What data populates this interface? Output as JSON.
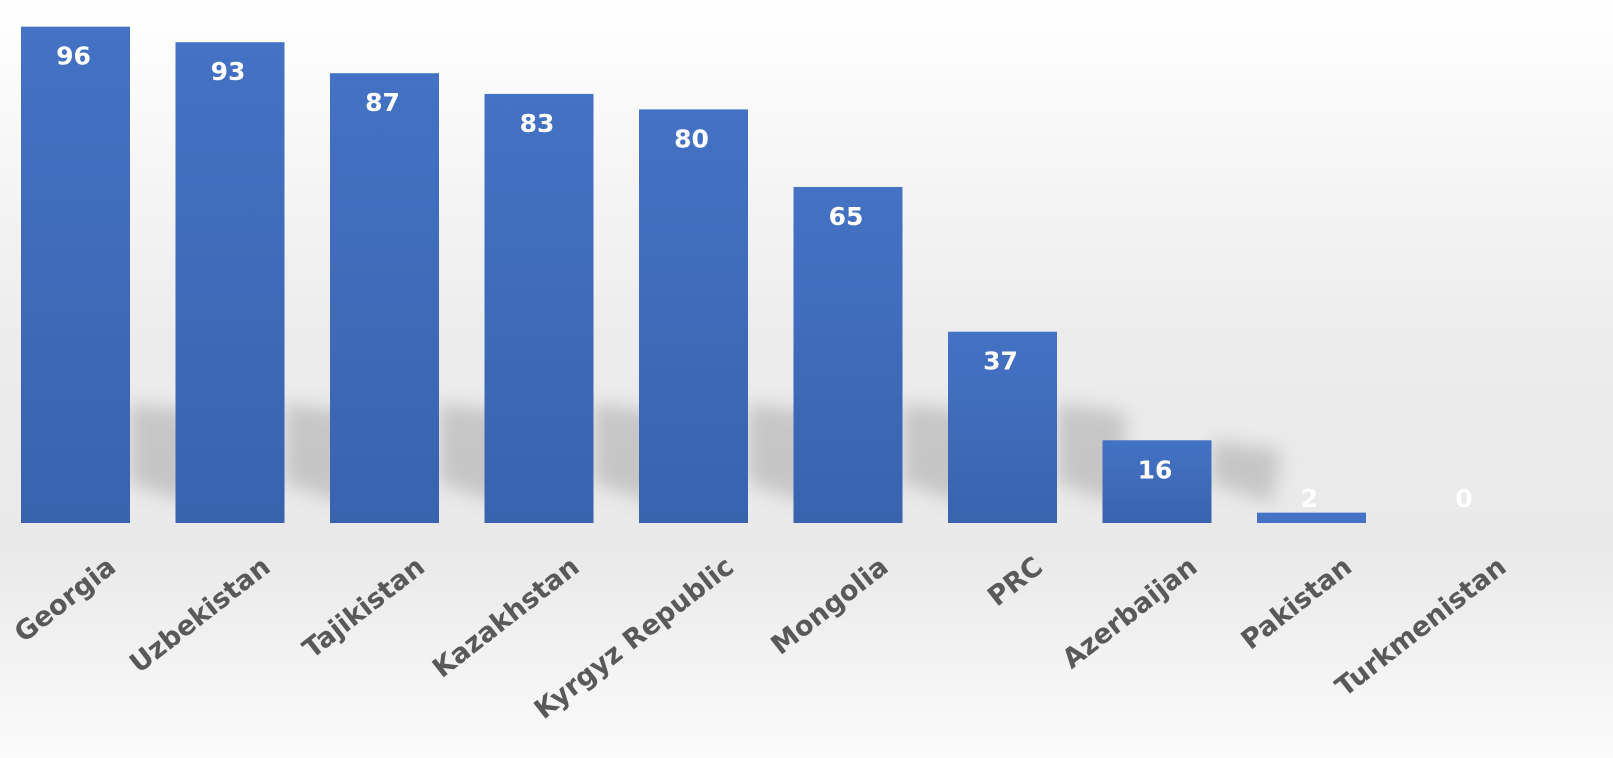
{
  "chart_data": {
    "type": "bar",
    "title": "",
    "xlabel": "",
    "ylabel": "",
    "categories": [
      "Georgia",
      "Uzbekistan",
      "Tajikistan",
      "Kazakhstan",
      "Kyrgyz Republic",
      "Mongolia",
      "PRC",
      "Azerbaijan",
      "Pakistan",
      "Turkmenistan"
    ],
    "values": [
      96,
      93,
      87,
      83,
      80,
      65,
      37,
      16,
      2,
      0
    ],
    "ylim": [
      0,
      100
    ],
    "grid": false,
    "legend": "none",
    "data_labels": true,
    "colors": {
      "bar": "#4472C4",
      "bar_dark": "#3A63AE",
      "label": "#595959",
      "value_label": "#FFFFFF"
    }
  }
}
